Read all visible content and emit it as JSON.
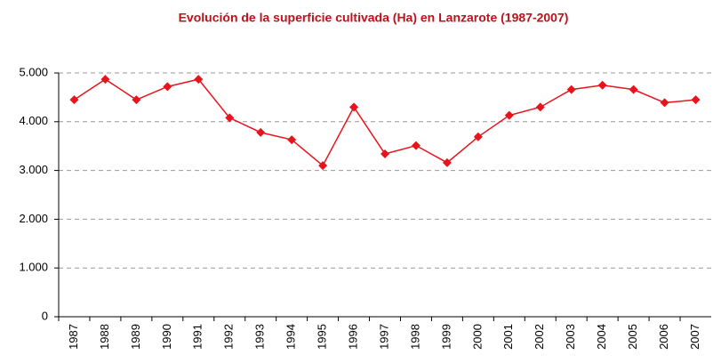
{
  "chart_data": {
    "type": "line",
    "title": "Evolución de la superficie cultivada (Ha) en Lanzarote (1987-2007)",
    "categories": [
      "1987",
      "1988",
      "1989",
      "1990",
      "1991",
      "1992",
      "1993",
      "1994",
      "1995",
      "1996",
      "1997",
      "1998",
      "1999",
      "2000",
      "2001",
      "2002",
      "2003",
      "2004",
      "2005",
      "2006",
      "2007"
    ],
    "series": [
      {
        "name": "Superficie cultivada",
        "color": "#e8141c",
        "values": [
          4450,
          4870,
          4450,
          4720,
          4870,
          4080,
          3780,
          3630,
          3100,
          4300,
          3340,
          3510,
          3160,
          3690,
          4130,
          4300,
          4660,
          4750,
          4660,
          4390,
          4450
        ]
      }
    ],
    "ylim": [
      0,
      5000
    ],
    "yticks": [
      0,
      {
        "value": 1000,
        "label": "1.000"
      },
      {
        "value": 2000,
        "label": "2.000"
      },
      {
        "value": 3000,
        "label": "3.000"
      },
      {
        "value": 4000,
        "label": "4.000"
      },
      {
        "value": 5000,
        "label": "5.000"
      }
    ],
    "grid": true
  }
}
